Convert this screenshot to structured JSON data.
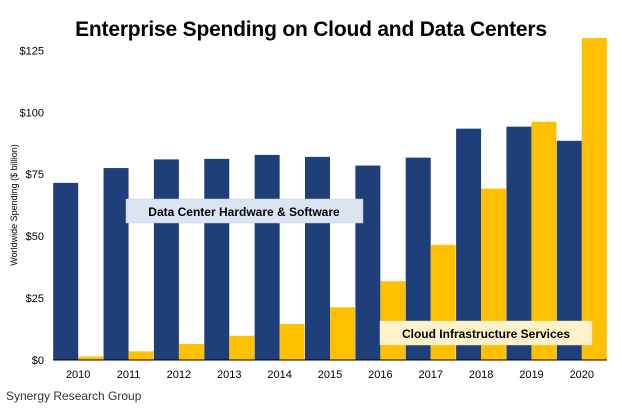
{
  "chart_data": {
    "type": "bar",
    "title": "Enterprise Spending on Cloud and Data Centers",
    "ylabel": "Worldwide Spending ($ billion)",
    "xlabel": "",
    "categories": [
      "2010",
      "2011",
      "2012",
      "2013",
      "2014",
      "2015",
      "2016",
      "2017",
      "2018",
      "2019",
      "2020"
    ],
    "series": [
      {
        "name": "Data Center Hardware & Software",
        "color": "#1f3f7a",
        "values": [
          71.5,
          77.5,
          81,
          81.2,
          82.8,
          82,
          78.5,
          81.7,
          93.4,
          94.2,
          88.5
        ]
      },
      {
        "name": "Cloud Infrastructure Services",
        "color": "#ffc000",
        "values": [
          1.4,
          3.5,
          6.5,
          9.8,
          14.5,
          21.3,
          31.8,
          46.5,
          69.2,
          96.2,
          130
        ]
      }
    ],
    "ylim": [
      0,
      130
    ],
    "yticks": [
      "$0",
      "$25",
      "$50",
      "$75",
      "$100",
      "$125"
    ],
    "ytick_values": [
      0,
      25,
      50,
      75,
      100,
      125
    ],
    "grid": false,
    "legend": "inline annotations"
  },
  "source": "Synergy Research Group"
}
